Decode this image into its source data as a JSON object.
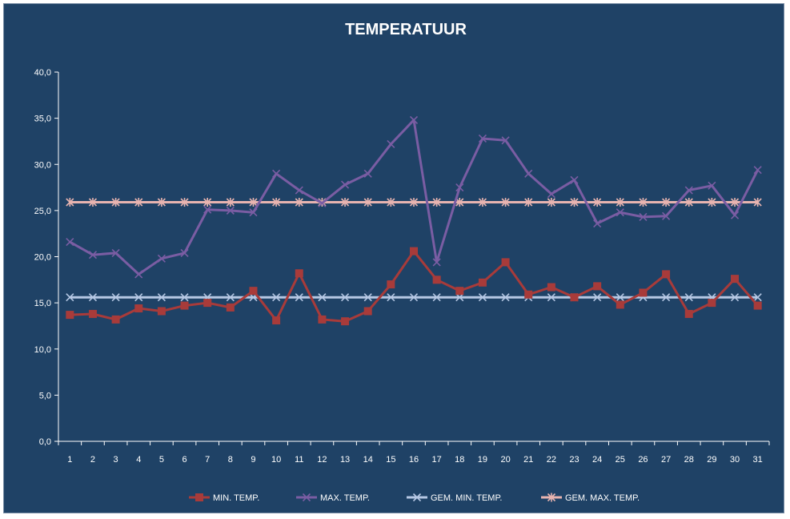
{
  "chart_data": {
    "type": "line",
    "title": "TEMPERATUUR",
    "xlabel": "",
    "ylabel": "",
    "ylim": [
      0,
      40
    ],
    "y_tick_labels": [
      "0,0",
      "5,0",
      "10,0",
      "15,0",
      "20,0",
      "25,0",
      "30,0",
      "35,0",
      "40,0"
    ],
    "categories": [
      "1",
      "2",
      "3",
      "4",
      "5",
      "6",
      "7",
      "8",
      "9",
      "10",
      "11",
      "12",
      "13",
      "14",
      "15",
      "16",
      "17",
      "18",
      "19",
      "20",
      "21",
      "22",
      "23",
      "24",
      "25",
      "26",
      "27",
      "28",
      "29",
      "30",
      "31"
    ],
    "grid": false,
    "legend_position": "bottom",
    "series": [
      {
        "name": "MIN. TEMP.",
        "color": "#a83b3a",
        "marker": "square",
        "values": [
          13.7,
          13.8,
          13.2,
          14.4,
          14.1,
          14.7,
          15.0,
          14.5,
          16.3,
          13.1,
          18.2,
          13.2,
          13.0,
          14.1,
          17.0,
          20.6,
          17.5,
          16.3,
          17.2,
          19.4,
          15.9,
          16.7,
          15.6,
          16.8,
          14.8,
          16.1,
          18.1,
          13.8,
          15.0,
          17.6,
          14.7
        ]
      },
      {
        "name": "MAX. TEMP.",
        "color": "#7a5da3",
        "marker": "x",
        "values": [
          21.6,
          20.2,
          20.4,
          18.1,
          19.8,
          20.4,
          25.1,
          25.0,
          24.8,
          29.0,
          27.2,
          25.8,
          27.8,
          29.0,
          32.2,
          34.8,
          19.4,
          27.5,
          32.8,
          32.6,
          29.0,
          26.8,
          28.3,
          23.6,
          24.8,
          24.3,
          24.4,
          27.2,
          27.7,
          24.5,
          29.4
        ]
      },
      {
        "name": "GEM. MIN. TEMP.",
        "color": "#b6c8e4",
        "marker": "x",
        "values": [
          15.6,
          15.6,
          15.6,
          15.6,
          15.6,
          15.6,
          15.6,
          15.6,
          15.6,
          15.6,
          15.6,
          15.6,
          15.6,
          15.6,
          15.6,
          15.6,
          15.6,
          15.6,
          15.6,
          15.6,
          15.6,
          15.6,
          15.6,
          15.6,
          15.6,
          15.6,
          15.6,
          15.6,
          15.6,
          15.6,
          15.6
        ]
      },
      {
        "name": "GEM. MAX. TEMP.",
        "color": "#e8b4b0",
        "marker": "asterisk",
        "values": [
          25.9,
          25.9,
          25.9,
          25.9,
          25.9,
          25.9,
          25.9,
          25.9,
          25.9,
          25.9,
          25.9,
          25.9,
          25.9,
          25.9,
          25.9,
          25.9,
          25.9,
          25.9,
          25.9,
          25.9,
          25.9,
          25.9,
          25.9,
          25.9,
          25.9,
          25.9,
          25.9,
          25.9,
          25.9,
          25.9,
          25.9
        ]
      }
    ]
  }
}
